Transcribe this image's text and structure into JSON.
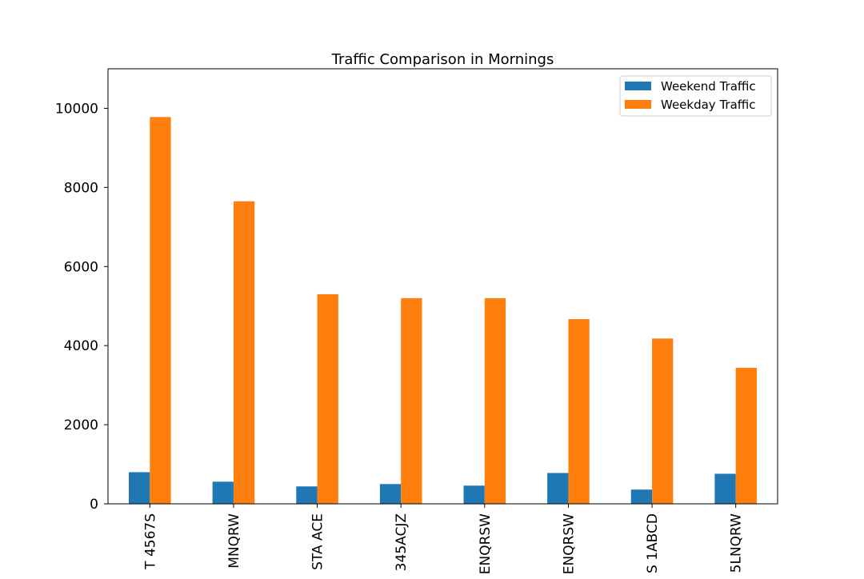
{
  "chart_data": {
    "type": "bar",
    "title": "Traffic Comparison in Mornings",
    "xlabel": "",
    "ylabel": "",
    "categories": [
      "T 4567S",
      "MNQRW",
      "STA ACE",
      "345ACJZ",
      "ENQRSW",
      "ENQRSW",
      "S 1ABCD",
      "5LNQRW"
    ],
    "series": [
      {
        "name": "Weekend Traffic",
        "color": "#1f77b4",
        "values": [
          800,
          560,
          440,
          500,
          460,
          780,
          360,
          760
        ]
      },
      {
        "name": "Weekday Traffic",
        "color": "#ff7f0e",
        "values": [
          9780,
          7650,
          5300,
          5200,
          5200,
          4670,
          4180,
          3440
        ]
      }
    ],
    "yticks": [
      "0",
      "2000",
      "4000",
      "6000",
      "8000",
      "10000"
    ],
    "ylim": [
      0,
      11000
    ],
    "grid": false,
    "legend_position": "top-right"
  }
}
